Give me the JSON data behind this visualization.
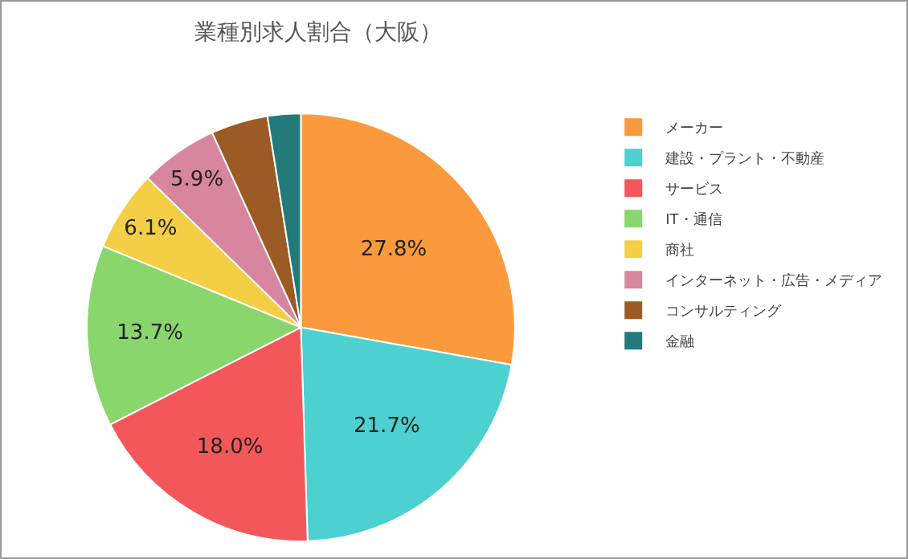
{
  "chart_data": {
    "type": "pie",
    "title": "業種別求人割合（大阪）",
    "categories": [
      "メーカー",
      "建設・プラント・不動産",
      "サービス",
      "IT・通信",
      "商社",
      "インターネット・広告・メディア",
      "コンサルティング",
      "金融"
    ],
    "values": [
      27.8,
      21.7,
      18.0,
      13.7,
      6.1,
      5.9,
      4.3,
      2.5
    ],
    "value_labels": [
      "27.8%",
      "21.7%",
      "18.0%",
      "13.7%",
      "6.1%",
      "5.9%",
      null,
      null
    ],
    "colors": [
      "#fb9a3c",
      "#4dd0d0",
      "#f4575a",
      "#88d66c",
      "#f4cf45",
      "#d8869f",
      "#9c5a24",
      "#237a7a"
    ],
    "legend": "right"
  }
}
